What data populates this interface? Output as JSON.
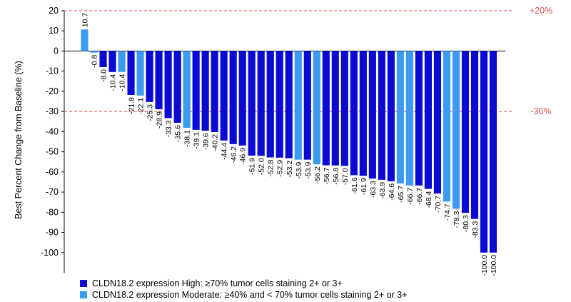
{
  "chart_data": {
    "type": "bar",
    "ylabel": "Best Percent Change from Baseline (%)",
    "ylim": [
      -110,
      20
    ],
    "yticks": [
      20,
      10,
      0,
      -10,
      -20,
      -30,
      -40,
      -50,
      -60,
      -70,
      -80,
      -90,
      -100
    ],
    "grid": false,
    "reference_lines": [
      {
        "value": 20,
        "label": "+20%",
        "style": "dashed",
        "color": "#e05050"
      },
      {
        "value": -30,
        "label": "-30%",
        "style": "dashed",
        "color": "#e05050"
      }
    ],
    "colors": {
      "High": "#0a0ad2",
      "Moderate": "#3b9bf2"
    },
    "legend": [
      {
        "key": "High",
        "label": "CLDN18.2 expression High: ≥70% tumor cells staining 2+ or 3+"
      },
      {
        "key": "Moderate",
        "label": "CLDN18.2 expression Moderate: ≥40% and  < 70% tumor cells staining 2+ or 3+"
      }
    ],
    "bars": [
      {
        "value": 10.7,
        "label": "10.7",
        "group": "Moderate"
      },
      {
        "value": -0.8,
        "label": "-0.8",
        "group": "Moderate"
      },
      {
        "value": -8.0,
        "label": "-8.0",
        "group": "High"
      },
      {
        "value": -10.4,
        "label": "-10.4",
        "group": "High"
      },
      {
        "value": -10.4,
        "label": "-10.4",
        "group": "Moderate"
      },
      {
        "value": -21.8,
        "label": "-21.8",
        "group": "High"
      },
      {
        "value": -22.1,
        "label": "-22.1",
        "group": "Moderate"
      },
      {
        "value": -25.3,
        "label": "-25.3",
        "group": "High"
      },
      {
        "value": -28.9,
        "label": "-28.9",
        "group": "High"
      },
      {
        "value": -33.3,
        "label": "-33.3",
        "group": "High"
      },
      {
        "value": -35.6,
        "label": "-35.6",
        "group": "High"
      },
      {
        "value": -38.1,
        "label": "-38.1",
        "group": "Moderate"
      },
      {
        "value": -39.1,
        "label": "-39.1",
        "group": "High"
      },
      {
        "value": -39.6,
        "label": "-39.6",
        "group": "High"
      },
      {
        "value": -40.2,
        "label": "-40.2",
        "group": "High"
      },
      {
        "value": -44.4,
        "label": "-44.4",
        "group": "High"
      },
      {
        "value": -46.2,
        "label": "-46.2",
        "group": "High"
      },
      {
        "value": -46.9,
        "label": "-46.9",
        "group": "High"
      },
      {
        "value": -51.9,
        "label": "-51.9",
        "group": "High"
      },
      {
        "value": -52.0,
        "label": "-52.0",
        "group": "High"
      },
      {
        "value": -52.8,
        "label": "-52.8",
        "group": "High"
      },
      {
        "value": -52.9,
        "label": "-52.9",
        "group": "High"
      },
      {
        "value": -53.2,
        "label": "-53.2",
        "group": "High"
      },
      {
        "value": -53.9,
        "label": "-53.9",
        "group": "Moderate"
      },
      {
        "value": -53.9,
        "label": "-53.9",
        "group": "High"
      },
      {
        "value": -56.2,
        "label": "-56.2",
        "group": "Moderate"
      },
      {
        "value": -56.7,
        "label": "-56.7",
        "group": "High"
      },
      {
        "value": -56.8,
        "label": "-56.8",
        "group": "High"
      },
      {
        "value": -57.0,
        "label": "-57.0",
        "group": "High"
      },
      {
        "value": -61.6,
        "label": "-61.6",
        "group": "High"
      },
      {
        "value": -61.9,
        "label": "-61.9",
        "group": "High"
      },
      {
        "value": -63.3,
        "label": "-63.3",
        "group": "High"
      },
      {
        "value": -63.9,
        "label": "-63.9",
        "group": "High"
      },
      {
        "value": -64.6,
        "label": "-64.6",
        "group": "High"
      },
      {
        "value": -65.7,
        "label": "-65.7",
        "group": "Moderate"
      },
      {
        "value": -66.7,
        "label": "-66.7",
        "group": "Moderate"
      },
      {
        "value": -66.7,
        "label": "-66.7",
        "group": "High"
      },
      {
        "value": -68.4,
        "label": "-68.4",
        "group": "High"
      },
      {
        "value": -70.7,
        "label": "-70.7",
        "group": "High"
      },
      {
        "value": -74.7,
        "label": "-74.7",
        "group": "Moderate"
      },
      {
        "value": -78.3,
        "label": "-78.3",
        "group": "Moderate"
      },
      {
        "value": -80.3,
        "label": "-80.3",
        "group": "High"
      },
      {
        "value": -83.3,
        "label": "-83.3",
        "group": "High"
      },
      {
        "value": -100.0,
        "label": "-100.0",
        "group": "High"
      },
      {
        "value": -100.0,
        "label": "-100.0",
        "group": "High"
      }
    ]
  }
}
